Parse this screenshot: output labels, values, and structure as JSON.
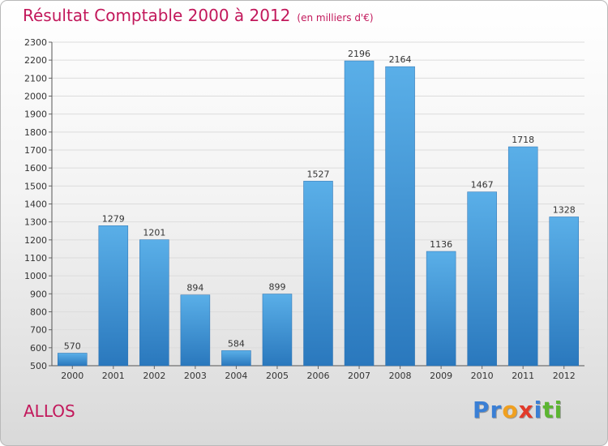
{
  "title": "Résultat Comptable 2000 à 2012",
  "subtitle": "(en milliers d'€)",
  "commune": "ALLOS",
  "logo": {
    "letters": [
      {
        "ch": "P",
        "color": "#3a7fd5"
      },
      {
        "ch": "r",
        "color": "#3a7fd5"
      },
      {
        "ch": "o",
        "color": "#f0a020"
      },
      {
        "ch": "x",
        "color": "#e23a2a"
      },
      {
        "ch": "i",
        "color": "#3a7fd5"
      },
      {
        "ch": "t",
        "color": "#5cb531"
      },
      {
        "ch": "i",
        "color": "#5cb531"
      }
    ]
  },
  "chart_data": {
    "type": "bar",
    "categories": [
      "2000",
      "2001",
      "2002",
      "2003",
      "2004",
      "2005",
      "2006",
      "2007",
      "2008",
      "2009",
      "2010",
      "2011",
      "2012"
    ],
    "values": [
      570,
      1279,
      1201,
      894,
      584,
      899,
      1527,
      2196,
      2164,
      1136,
      1467,
      1718,
      1328
    ],
    "ylim": [
      500,
      2300
    ],
    "yticks": [
      500,
      600,
      700,
      800,
      900,
      1000,
      1100,
      1200,
      1300,
      1400,
      1500,
      1600,
      1700,
      1800,
      1900,
      2000,
      2100,
      2200,
      2300
    ],
    "grid": true,
    "bar_color": "#4a9fe0"
  }
}
